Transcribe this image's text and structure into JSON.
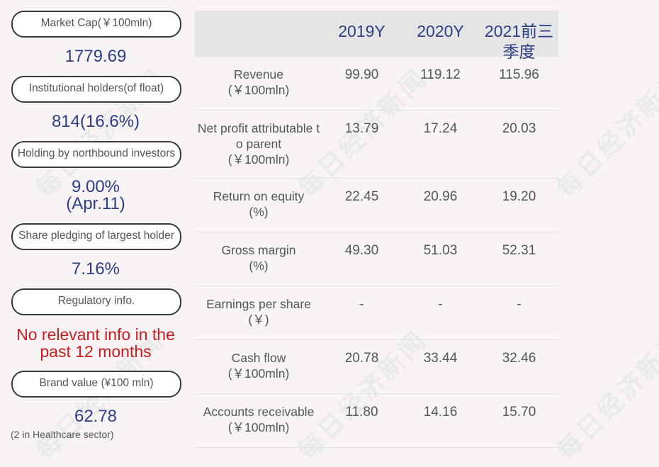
{
  "watermark": "每日经济新闻",
  "metrics": [
    {
      "label": "Market Cap(￥100mln)",
      "value": "1779.69"
    },
    {
      "label": "Institutional holders(of float)",
      "value": "814(16.6%)"
    },
    {
      "label": "Holding by northbound investors",
      "value": "9.00%",
      "value2": "(Apr.11)"
    },
    {
      "label": "Share pledging of largest holder",
      "value": "7.16%"
    },
    {
      "label": "Regulatory info.",
      "value": "No relevant info in the",
      "value2": "past 12 months"
    },
    {
      "label": "Brand value (¥100 mln)",
      "value": "62.78",
      "note": "(2 in Healthcare sector)"
    }
  ],
  "table": {
    "headers": [
      "2019Y",
      "2020Y",
      "2021前三",
      "季度"
    ],
    "rows": [
      {
        "label": "Revenue",
        "unit": "(￥100mln)",
        "values": [
          "99.90",
          "119.12",
          "115.96"
        ]
      },
      {
        "label": "Net profit attributable to parent",
        "unit": "(￥100mln)",
        "values": [
          "13.79",
          "17.24",
          "20.03"
        ]
      },
      {
        "label": "Return on equity",
        "unit": "(%)",
        "values": [
          "22.45",
          "20.96",
          "19.20"
        ]
      },
      {
        "label": "Gross margin",
        "unit": "(%)",
        "values": [
          "49.30",
          "51.03",
          "52.31"
        ]
      },
      {
        "label": "Earnings per share",
        "unit": "(￥)",
        "values": [
          "-",
          "-",
          "-"
        ]
      },
      {
        "label": "Cash flow",
        "unit": "(￥100mln)",
        "values": [
          "20.78",
          "33.44",
          "32.46"
        ]
      },
      {
        "label": "Accounts receivable",
        "unit": "(￥100mln)",
        "values": [
          "11.80",
          "14.16",
          "15.70"
        ]
      }
    ]
  },
  "colors": {
    "accent": "#2c3f86",
    "alert": "#d01c1f",
    "header_bg": "#e5e5e5",
    "page_bg": "#f8f4f5"
  }
}
